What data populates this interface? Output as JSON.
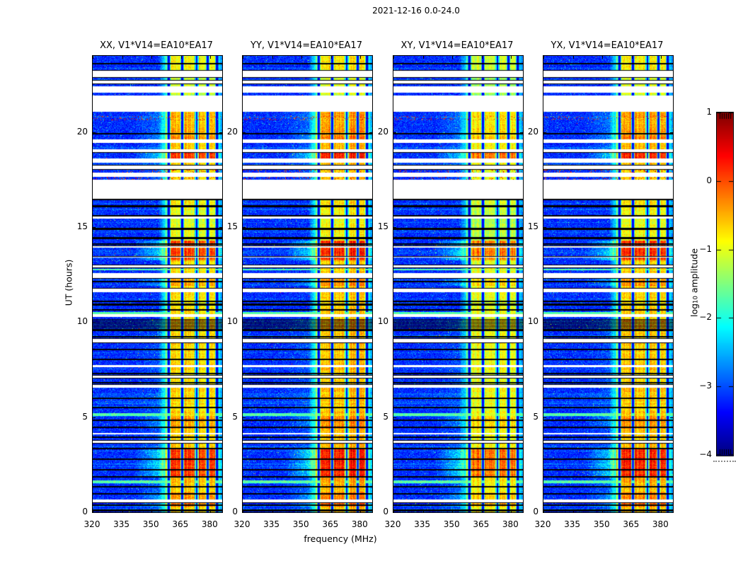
{
  "figure": {
    "suptitle": "2021-12-16 0.0-24.0",
    "background": "#ffffff",
    "text_color": "#000000"
  },
  "chart_data": {
    "type": "heatmap",
    "subtype": "dynamic-spectrum-grid",
    "colormap": "jet",
    "title": "2021-12-16 0.0-24.0",
    "x": {
      "label": "frequency (MHz)",
      "range": [
        320,
        386
      ],
      "ticks": [
        320,
        335,
        350,
        365,
        380
      ],
      "tick_labels": [
        "320",
        "335",
        "350",
        "365",
        "380"
      ]
    },
    "y": {
      "label": "UT (hours)",
      "range": [
        0,
        24
      ],
      "ticks": [
        0,
        5,
        10,
        15,
        20
      ],
      "tick_labels": [
        "0",
        "5",
        "10",
        "15",
        "20"
      ]
    },
    "colorbar": {
      "label_pre": "log",
      "label_sub": "10",
      "label_post": " amplitude",
      "range": [
        -4,
        1
      ],
      "ticks": [
        1,
        0,
        -1,
        -2,
        -3,
        -4
      ],
      "tick_labels": [
        "1",
        "0",
        "−1",
        "−2",
        "−3",
        "−4"
      ],
      "top_color": "#7f0000",
      "bottom_color": "#00007f"
    },
    "panels": [
      {
        "id": "XX",
        "title": "XX, V1*V14=EA10*EA17",
        "intensity": 1.0,
        "seed": 11
      },
      {
        "id": "YY",
        "title": "YY, V1*V14=EA10*EA17",
        "intensity": 1.04,
        "seed": 29
      },
      {
        "id": "XY",
        "title": "XY, V1*V14=EA10*EA17",
        "intensity": 0.93,
        "seed": 47
      },
      {
        "id": "YX",
        "title": "YX, V1*V14=EA10*EA17",
        "intensity": 1.02,
        "seed": 83
      }
    ],
    "features": {
      "background_level_log10": -3.3,
      "rfi_band": {
        "freq_start": 356,
        "freq_end": 383.3,
        "stripe_separators_mhz": [
          358.8,
          365.7,
          373.0,
          378.7,
          383.2
        ]
      },
      "band_profile_log10_t": [
        [
          0,
          0.3,
          0.68
        ],
        [
          0.3,
          1.05,
          0.74
        ],
        [
          1.05,
          1.85,
          0.68
        ],
        [
          1.85,
          3.35,
          0.82
        ],
        [
          3.35,
          4.4,
          0.66
        ],
        [
          4.4,
          5.05,
          0.72
        ],
        [
          5.05,
          9.5,
          0.66
        ],
        [
          9.5,
          10.15,
          0.68
        ],
        [
          10.15,
          11.9,
          0.65
        ],
        [
          11.9,
          12.3,
          0.72
        ],
        [
          12.3,
          13.25,
          0.65
        ],
        [
          13.25,
          14.3,
          0.8
        ],
        [
          14.3,
          15.5,
          0.6
        ],
        [
          15.5,
          16.5,
          0.62
        ],
        [
          16.5,
          18.6,
          0.66
        ],
        [
          18.6,
          18.95,
          0.81
        ],
        [
          18.95,
          19.6,
          0.68
        ],
        [
          19.6,
          19.85,
          0.73
        ],
        [
          19.85,
          21.05,
          0.7
        ],
        [
          21.05,
          22.9,
          0.57
        ],
        [
          22.9,
          24,
          0.62
        ]
      ],
      "white_gaps_hours": [
        [
          0.52,
          0.67
        ],
        [
          3.65,
          3.76
        ],
        [
          4.08,
          4.18
        ],
        [
          6.55,
          6.68
        ],
        [
          7.07,
          7.18
        ],
        [
          7.63,
          7.74
        ],
        [
          8.93,
          9.11
        ],
        [
          10.28,
          10.4
        ],
        [
          11.57,
          11.76
        ],
        [
          12.3,
          12.57
        ],
        [
          12.88,
          13.0
        ],
        [
          13.38,
          13.44
        ],
        [
          13.9,
          13.98
        ],
        [
          15.45,
          15.55
        ],
        [
          16.5,
          17.5
        ],
        [
          17.65,
          17.85
        ],
        [
          18.05,
          18.25
        ],
        [
          18.4,
          18.6
        ],
        [
          18.95,
          19.1
        ],
        [
          19.43,
          19.6
        ],
        [
          21.05,
          21.9
        ],
        [
          22.05,
          22.4
        ],
        [
          22.55,
          22.7
        ],
        [
          22.9,
          23.2
        ]
      ],
      "black_lines_hours": [
        0.1,
        0.37,
        0.97,
        1.34,
        1.86,
        2.23,
        2.79,
        3.35,
        3.94,
        4.46,
        4.84,
        5.51,
        5.99,
        6.81,
        7.29,
        8.04,
        8.56,
        9.23,
        9.56,
        10.65,
        10.92,
        11.08,
        12.12,
        14.1,
        14.42,
        14.9,
        15.6,
        16.1,
        16.46,
        19.9,
        22.88,
        23.22,
        23.6
      ],
      "bright_rows_hours": [
        [
          1.52,
          1.66
        ],
        [
          5.06,
          5.2
        ],
        [
          10.42,
          10.52
        ],
        [
          12.72,
          12.8
        ]
      ],
      "speck_rows_hours": [
        [
          17.5,
          17.65
        ],
        [
          17.87,
          18.02
        ],
        [
          20.62,
          20.85
        ]
      ],
      "striped_block_hours": [
        9.5,
        10.15
      ]
    }
  }
}
